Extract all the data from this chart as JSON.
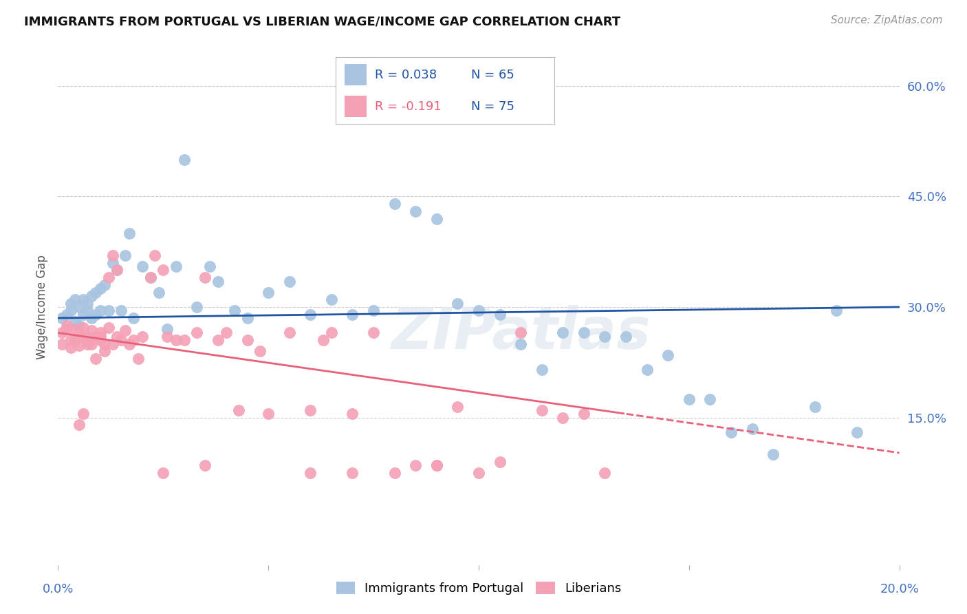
{
  "title": "IMMIGRANTS FROM PORTUGAL VS LIBERIAN WAGE/INCOME GAP CORRELATION CHART",
  "source": "Source: ZipAtlas.com",
  "ylabel": "Wage/Income Gap",
  "ytick_vals": [
    0.0,
    0.15,
    0.3,
    0.45,
    0.6
  ],
  "ytick_labels": [
    "",
    "15.0%",
    "30.0%",
    "45.0%",
    "60.0%"
  ],
  "xlim": [
    0.0,
    0.2
  ],
  "ylim": [
    -0.05,
    0.65
  ],
  "legend_blue_r": "R = 0.038",
  "legend_blue_n": "N = 65",
  "legend_pink_r": "R = -0.191",
  "legend_pink_n": "N = 75",
  "blue_color": "#a8c4e0",
  "blue_line_color": "#2055a4",
  "pink_color": "#f4a0b5",
  "pink_line_color": "#e8607a",
  "legend_label_blue": "Immigrants from Portugal",
  "legend_label_pink": "Liberians",
  "watermark": "ZIPatlas",
  "blue_points_x": [
    0.001,
    0.002,
    0.003,
    0.003,
    0.004,
    0.004,
    0.005,
    0.005,
    0.006,
    0.006,
    0.007,
    0.007,
    0.008,
    0.008,
    0.009,
    0.009,
    0.01,
    0.01,
    0.011,
    0.012,
    0.013,
    0.014,
    0.015,
    0.016,
    0.017,
    0.018,
    0.02,
    0.022,
    0.024,
    0.026,
    0.028,
    0.03,
    0.033,
    0.036,
    0.038,
    0.042,
    0.045,
    0.05,
    0.055,
    0.06,
    0.065,
    0.07,
    0.075,
    0.08,
    0.085,
    0.09,
    0.095,
    0.1,
    0.105,
    0.11,
    0.115,
    0.12,
    0.125,
    0.13,
    0.135,
    0.14,
    0.145,
    0.15,
    0.155,
    0.16,
    0.165,
    0.17,
    0.18,
    0.185,
    0.19
  ],
  "blue_points_y": [
    0.285,
    0.29,
    0.295,
    0.305,
    0.28,
    0.31,
    0.275,
    0.3,
    0.31,
    0.29,
    0.295,
    0.305,
    0.285,
    0.315,
    0.29,
    0.32,
    0.295,
    0.325,
    0.33,
    0.295,
    0.36,
    0.35,
    0.295,
    0.37,
    0.4,
    0.285,
    0.355,
    0.34,
    0.32,
    0.27,
    0.355,
    0.5,
    0.3,
    0.355,
    0.335,
    0.295,
    0.285,
    0.32,
    0.335,
    0.29,
    0.31,
    0.29,
    0.295,
    0.44,
    0.43,
    0.42,
    0.305,
    0.295,
    0.29,
    0.25,
    0.215,
    0.265,
    0.265,
    0.26,
    0.26,
    0.215,
    0.235,
    0.175,
    0.175,
    0.13,
    0.135,
    0.1,
    0.165,
    0.295,
    0.13
  ],
  "pink_points_x": [
    0.001,
    0.001,
    0.002,
    0.002,
    0.003,
    0.003,
    0.004,
    0.004,
    0.005,
    0.005,
    0.005,
    0.006,
    0.006,
    0.006,
    0.007,
    0.007,
    0.007,
    0.008,
    0.008,
    0.008,
    0.009,
    0.009,
    0.01,
    0.01,
    0.01,
    0.011,
    0.011,
    0.012,
    0.012,
    0.013,
    0.013,
    0.014,
    0.014,
    0.015,
    0.016,
    0.017,
    0.018,
    0.019,
    0.02,
    0.022,
    0.023,
    0.025,
    0.026,
    0.028,
    0.03,
    0.033,
    0.035,
    0.038,
    0.04,
    0.043,
    0.045,
    0.048,
    0.05,
    0.055,
    0.06,
    0.063,
    0.065,
    0.07,
    0.075,
    0.08,
    0.085,
    0.09,
    0.095,
    0.1,
    0.105,
    0.11,
    0.115,
    0.12,
    0.125,
    0.13,
    0.06,
    0.09,
    0.025,
    0.035,
    0.07
  ],
  "pink_points_y": [
    0.25,
    0.265,
    0.275,
    0.27,
    0.255,
    0.245,
    0.27,
    0.255,
    0.248,
    0.265,
    0.14,
    0.26,
    0.272,
    0.155,
    0.25,
    0.26,
    0.255,
    0.268,
    0.25,
    0.255,
    0.23,
    0.26,
    0.265,
    0.26,
    0.255,
    0.25,
    0.24,
    0.272,
    0.34,
    0.25,
    0.37,
    0.26,
    0.35,
    0.255,
    0.268,
    0.25,
    0.255,
    0.23,
    0.26,
    0.34,
    0.37,
    0.35,
    0.26,
    0.255,
    0.255,
    0.265,
    0.34,
    0.255,
    0.265,
    0.16,
    0.255,
    0.24,
    0.155,
    0.265,
    0.16,
    0.255,
    0.265,
    0.155,
    0.265,
    0.075,
    0.085,
    0.085,
    0.165,
    0.075,
    0.09,
    0.265,
    0.16,
    0.15,
    0.155,
    0.075,
    0.075,
    0.085,
    0.075,
    0.085,
    0.075
  ]
}
